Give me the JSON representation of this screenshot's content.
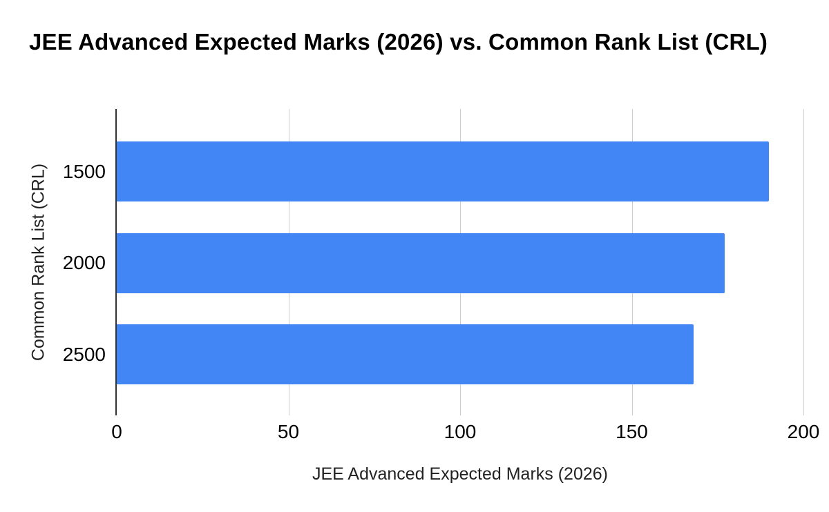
{
  "chart_data": {
    "type": "bar",
    "orientation": "horizontal",
    "title": "JEE Advanced Expected Marks (2026) vs. Common Rank List (CRL)",
    "categories": [
      "1500",
      "2000",
      "2500"
    ],
    "values": [
      190,
      177,
      168
    ],
    "xlabel": "JEE Advanced Expected Marks (2026)",
    "ylabel": "Common Rank List (CRL)",
    "xlim": [
      0,
      200
    ],
    "x_ticks": [
      "0",
      "50",
      "100",
      "150",
      "200"
    ],
    "grid": true,
    "legend": "none",
    "colors": {
      "bar": "#4285f4",
      "gridline": "#cccccc",
      "axis_line": "#333333",
      "tick_text": "#000000",
      "axis_title_text": "#222222",
      "title_text": "#000000",
      "background": "#ffffff"
    }
  }
}
